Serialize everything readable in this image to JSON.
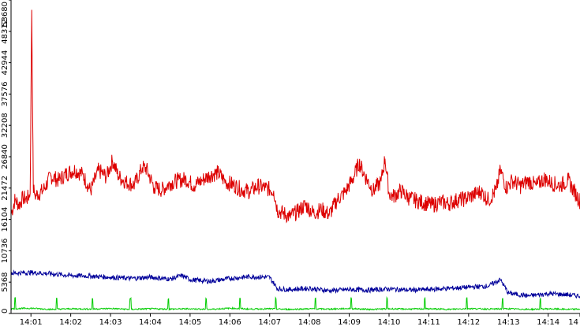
{
  "chart_data": {
    "type": "line",
    "title": "",
    "xlabel": "",
    "ylabel": "",
    "ylim": [
      0,
      53680
    ],
    "x_range_minutes": [
      0.5,
      14.8
    ],
    "x_ticks": [
      {
        "minute": 1,
        "label": "14:01"
      },
      {
        "minute": 2,
        "label": "14:02"
      },
      {
        "minute": 3,
        "label": "14:03"
      },
      {
        "minute": 4,
        "label": "14:04"
      },
      {
        "minute": 5,
        "label": "14:05"
      },
      {
        "minute": 6,
        "label": "14:06"
      },
      {
        "minute": 7,
        "label": "14:07"
      },
      {
        "minute": 8,
        "label": "14:08"
      },
      {
        "minute": 9,
        "label": "14:09"
      },
      {
        "minute": 10,
        "label": "14:10"
      },
      {
        "minute": 11,
        "label": "14:11"
      },
      {
        "minute": 12,
        "label": "14:12"
      },
      {
        "minute": 13,
        "label": "14:13"
      },
      {
        "minute": 14,
        "label": "14:14"
      },
      {
        "minute": 14.8,
        "label": "14"
      }
    ],
    "y_ticks": [
      {
        "value": 0,
        "label": "0"
      },
      {
        "value": 5368,
        "label": "5368"
      },
      {
        "value": 10736,
        "label": "10736"
      },
      {
        "value": 16104,
        "label": "16104"
      },
      {
        "value": 21472,
        "label": "21472"
      },
      {
        "value": 26840,
        "label": "26840"
      },
      {
        "value": 32208,
        "label": "32208"
      },
      {
        "value": 37576,
        "label": "37576"
      },
      {
        "value": 42944,
        "label": "42944"
      },
      {
        "value": 48312,
        "label": "48312"
      },
      {
        "value": 53680,
        "label": "53680"
      }
    ],
    "grid": false,
    "series": [
      {
        "color": "#dd0000",
        "x": [
          0.5,
          0.6,
          0.7,
          0.8,
          0.9,
          0.98,
          1.02,
          1.06,
          1.1,
          1.3,
          1.5,
          1.7,
          1.9,
          2.1,
          2.3,
          2.5,
          2.7,
          2.9,
          3.05,
          3.2,
          3.4,
          3.6,
          3.8,
          3.9,
          4.1,
          4.3,
          4.5,
          4.7,
          4.9,
          5.1,
          5.3,
          5.5,
          5.7,
          5.9,
          6.1,
          6.3,
          6.5,
          6.7,
          6.9,
          7.1,
          7.2,
          7.3,
          7.5,
          7.7,
          7.9,
          8.1,
          8.3,
          8.5,
          8.7,
          8.9,
          9.1,
          9.25,
          9.4,
          9.6,
          9.8,
          9.9,
          10.0,
          10.1,
          10.3,
          10.5,
          10.7,
          10.9,
          11.1,
          11.3,
          11.5,
          11.7,
          11.9,
          12.1,
          12.3,
          12.5,
          12.7,
          12.8,
          12.95,
          13.1,
          13.3,
          13.5,
          13.7,
          13.9,
          14.1,
          14.3,
          14.5,
          14.7,
          14.8
        ],
        "y": [
          17000,
          19500,
          18600,
          19800,
          19600,
          20500,
          52000,
          21500,
          20200,
          21000,
          23500,
          22800,
          24000,
          24600,
          23800,
          21000,
          24500,
          23400,
          26200,
          23500,
          22500,
          22000,
          25000,
          24800,
          21500,
          21200,
          22300,
          22800,
          23000,
          21900,
          22800,
          23700,
          24100,
          22500,
          22000,
          21200,
          20900,
          21800,
          21500,
          21000,
          17600,
          17300,
          16600,
          17400,
          18600,
          17200,
          17800,
          17000,
          19500,
          20800,
          23200,
          25800,
          23500,
          21000,
          22600,
          26500,
          20600,
          20000,
          21000,
          19800,
          19300,
          18900,
          18600,
          19100,
          18800,
          19400,
          19600,
          20200,
          20900,
          19400,
          21200,
          24600,
          21500,
          22800,
          21800,
          22700,
          21900,
          23100,
          22300,
          21900,
          22800,
          20400,
          19200
        ]
      },
      {
        "color": "#00009a",
        "x": [
          0.5,
          1.0,
          1.5,
          2.0,
          2.5,
          3.0,
          3.5,
          4.0,
          4.5,
          4.8,
          5.0,
          5.5,
          6.0,
          6.5,
          7.0,
          7.2,
          7.5,
          8.0,
          8.5,
          9.0,
          9.5,
          10.0,
          10.5,
          11.0,
          11.5,
          12.0,
          12.5,
          12.8,
          13.0,
          13.5,
          14.0,
          14.5,
          14.8
        ],
        "y": [
          6900,
          7000,
          6800,
          6500,
          6400,
          6200,
          6000,
          6200,
          5900,
          6500,
          5800,
          5500,
          6000,
          6300,
          6200,
          4200,
          4100,
          4300,
          3900,
          4100,
          4000,
          4200,
          4000,
          4100,
          4300,
          4500,
          4700,
          5800,
          3500,
          3000,
          3400,
          3200,
          3000
        ]
      },
      {
        "color": "#00cc00",
        "x": [
          0.5,
          1.0,
          1.5,
          2.0,
          2.5,
          3.0,
          3.5,
          4.0,
          4.5,
          5.0,
          5.5,
          6.0,
          6.5,
          7.0,
          7.5,
          8.0,
          8.5,
          9.0,
          9.5,
          10.0,
          10.5,
          11.0,
          11.5,
          12.0,
          12.5,
          13.0,
          13.5,
          14.0,
          14.5,
          14.8
        ],
        "y": [
          800,
          900,
          700,
          800,
          750,
          850,
          700,
          800,
          750,
          800,
          700,
          900,
          750,
          800,
          700,
          800,
          750,
          850,
          700,
          800,
          750,
          800,
          700,
          850,
          750,
          800,
          700,
          800,
          700,
          750
        ],
        "spikes": [
          0.6,
          1.65,
          2.55,
          3.5,
          4.45,
          5.4,
          6.25,
          7.15,
          8.15,
          9.05,
          9.95,
          10.9,
          11.95,
          12.85,
          13.8
        ]
      }
    ]
  }
}
